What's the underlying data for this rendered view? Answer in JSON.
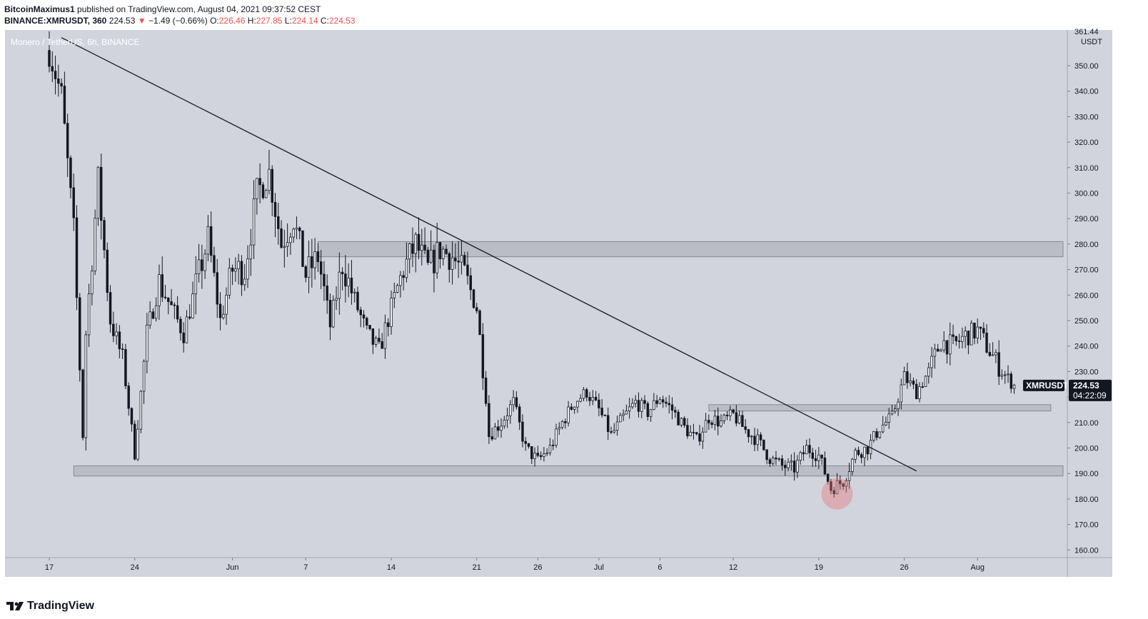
{
  "header": {
    "author": "BitcoinMaximus1",
    "published_text": "published on TradingView.com, August 04, 2021 09:37:52 CEST",
    "symbol": "BINANCE:XMRUSDT, 360",
    "last_price": "224.53",
    "change_arrow": "▼",
    "change": "−1.49 (−0.66%)",
    "o_label": "O:",
    "o_value": "226.46",
    "h_label": "H:",
    "h_value": "227.85",
    "l_label": "L:",
    "l_value": "224.14",
    "c_label": "C:",
    "c_value": "224.53"
  },
  "footer": {
    "brand": "TradingView"
  },
  "colors": {
    "plot_bg": "#d1d4dc",
    "candle": "#131722",
    "zone": "#b2b5be",
    "highlight": "#e57373",
    "price_tag": "#131722"
  },
  "chart_data": {
    "type": "candlestick",
    "title": "Monero / TetherUS, 6h, BINANCE",
    "ylabel": "USDT",
    "ylim": [
      157,
      364
    ],
    "y_ticks": [
      160,
      170,
      180,
      190,
      200,
      210,
      220,
      230,
      240,
      250,
      260,
      270,
      280,
      290,
      300,
      310,
      320,
      330,
      340,
      350
    ],
    "y_top_partial_label": "361.44",
    "x_start": "2021-05-17",
    "x_end": "2021-08-08",
    "x_ticks": [
      {
        "date": "2021-05-17",
        "label": "17"
      },
      {
        "date": "2021-05-24",
        "label": "24"
      },
      {
        "date": "2021-06-01",
        "label": "Jun"
      },
      {
        "date": "2021-06-07",
        "label": "7"
      },
      {
        "date": "2021-06-14",
        "label": "14"
      },
      {
        "date": "2021-06-21",
        "label": "21"
      },
      {
        "date": "2021-06-26",
        "label": "26"
      },
      {
        "date": "2021-07-01",
        "label": "Jul"
      },
      {
        "date": "2021-07-06",
        "label": "6"
      },
      {
        "date": "2021-07-12",
        "label": "12"
      },
      {
        "date": "2021-07-19",
        "label": "19"
      },
      {
        "date": "2021-07-26",
        "label": "26"
      },
      {
        "date": "2021-08-01",
        "label": "Aug"
      }
    ],
    "price_path": [
      [
        "2021-05-17",
        356
      ],
      [
        "2021-05-18",
        338
      ],
      [
        "2021-05-19",
        285
      ],
      [
        "2021-05-19T18",
        205
      ],
      [
        "2021-05-20",
        245
      ],
      [
        "2021-05-21",
        305
      ],
      [
        "2021-05-22",
        250
      ],
      [
        "2021-05-23",
        235
      ],
      [
        "2021-05-24",
        198
      ],
      [
        "2021-05-25",
        245
      ],
      [
        "2021-05-26",
        265
      ],
      [
        "2021-05-28",
        245
      ],
      [
        "2021-05-30",
        282
      ],
      [
        "2021-05-31",
        250
      ],
      [
        "2021-06-01",
        270
      ],
      [
        "2021-06-02",
        270
      ],
      [
        "2021-06-03",
        300
      ],
      [
        "2021-06-04",
        308
      ],
      [
        "2021-06-05",
        280
      ],
      [
        "2021-06-06",
        290
      ],
      [
        "2021-06-07",
        268
      ],
      [
        "2021-06-08",
        275
      ],
      [
        "2021-06-09",
        248
      ],
      [
        "2021-06-10",
        272
      ],
      [
        "2021-06-11",
        258
      ],
      [
        "2021-06-12",
        245
      ],
      [
        "2021-06-13",
        238
      ],
      [
        "2021-06-14",
        255
      ],
      [
        "2021-06-15",
        270
      ],
      [
        "2021-06-16",
        280
      ],
      [
        "2021-06-17",
        270
      ],
      [
        "2021-06-18",
        278
      ],
      [
        "2021-06-19",
        275
      ],
      [
        "2021-06-20",
        268
      ],
      [
        "2021-06-21",
        255
      ],
      [
        "2021-06-21T18",
        220
      ],
      [
        "2021-06-22",
        205
      ],
      [
        "2021-06-23",
        210
      ],
      [
        "2021-06-24",
        218
      ],
      [
        "2021-06-25",
        200
      ],
      [
        "2021-06-26",
        195
      ],
      [
        "2021-06-27",
        200
      ],
      [
        "2021-06-28",
        210
      ],
      [
        "2021-06-29",
        218
      ],
      [
        "2021-06-30",
        222
      ],
      [
        "2021-07-01",
        215
      ],
      [
        "2021-07-02",
        205
      ],
      [
        "2021-07-03",
        212
      ],
      [
        "2021-07-04",
        218
      ],
      [
        "2021-07-05",
        214
      ],
      [
        "2021-07-06",
        220
      ],
      [
        "2021-07-07",
        215
      ],
      [
        "2021-07-08",
        208
      ],
      [
        "2021-07-09",
        203
      ],
      [
        "2021-07-10",
        212
      ],
      [
        "2021-07-11",
        210
      ],
      [
        "2021-07-12",
        213
      ],
      [
        "2021-07-13",
        207
      ],
      [
        "2021-07-14",
        203
      ],
      [
        "2021-07-15",
        196
      ],
      [
        "2021-07-16",
        193
      ],
      [
        "2021-07-17",
        192
      ],
      [
        "2021-07-18",
        200
      ],
      [
        "2021-07-19",
        197
      ],
      [
        "2021-07-20",
        184
      ],
      [
        "2021-07-21",
        187
      ],
      [
        "2021-07-22",
        198
      ],
      [
        "2021-07-23",
        200
      ],
      [
        "2021-07-24",
        208
      ],
      [
        "2021-07-25",
        212
      ],
      [
        "2021-07-26",
        228
      ],
      [
        "2021-07-27",
        222
      ],
      [
        "2021-07-28",
        230
      ],
      [
        "2021-07-29",
        242
      ],
      [
        "2021-07-30",
        240
      ],
      [
        "2021-07-31",
        244
      ],
      [
        "2021-08-01",
        246
      ],
      [
        "2021-08-02",
        238
      ],
      [
        "2021-08-03",
        230
      ],
      [
        "2021-08-04",
        224.5
      ]
    ],
    "drawings": {
      "trendline": [
        [
          "2021-05-18",
          361
        ],
        [
          "2021-07-27",
          191
        ]
      ],
      "zones": [
        {
          "x1": "2021-06-08",
          "x2": "2021-08-08",
          "low": 275,
          "high": 281
        },
        {
          "x1": "2021-05-19",
          "x2": "2021-08-08",
          "low": 189,
          "high": 193
        },
        {
          "x1": "2021-07-10",
          "x2": "2021-08-07",
          "low": 214.5,
          "high": 217
        }
      ],
      "highlight_circle": {
        "date": "2021-07-20T12",
        "price": 182
      }
    },
    "current_price_tag": {
      "symbol": "XMRUSDT",
      "price": "224.53",
      "countdown": "04:22:09"
    }
  }
}
